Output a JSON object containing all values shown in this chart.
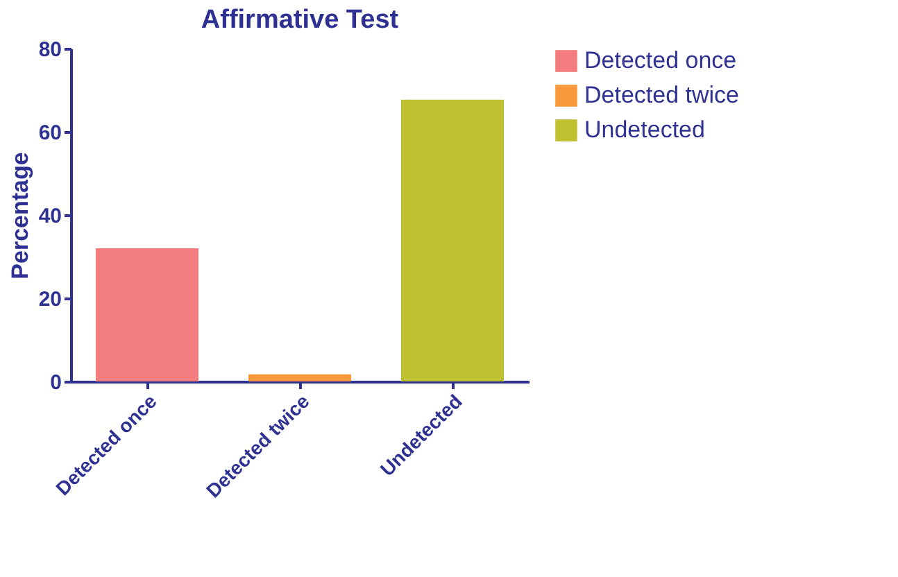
{
  "chart_data": {
    "type": "bar",
    "title": "Affirmative Test",
    "ylabel": "Percentage",
    "categories": [
      "Detected once",
      "Detected twice",
      "Undetected"
    ],
    "series": [
      {
        "name": "Detected once",
        "color": "#f27c7e",
        "values": [
          32,
          null,
          null
        ]
      },
      {
        "name": "Detected twice",
        "color": "#f89a3c",
        "values": [
          null,
          1.7,
          null
        ]
      },
      {
        "name": "Undetected",
        "color": "#bec030",
        "values": [
          null,
          null,
          67.7
        ]
      }
    ],
    "ylim": [
      0,
      80
    ],
    "yticks": [
      0,
      20,
      40,
      60,
      80
    ],
    "grid": false,
    "legend": "right"
  }
}
